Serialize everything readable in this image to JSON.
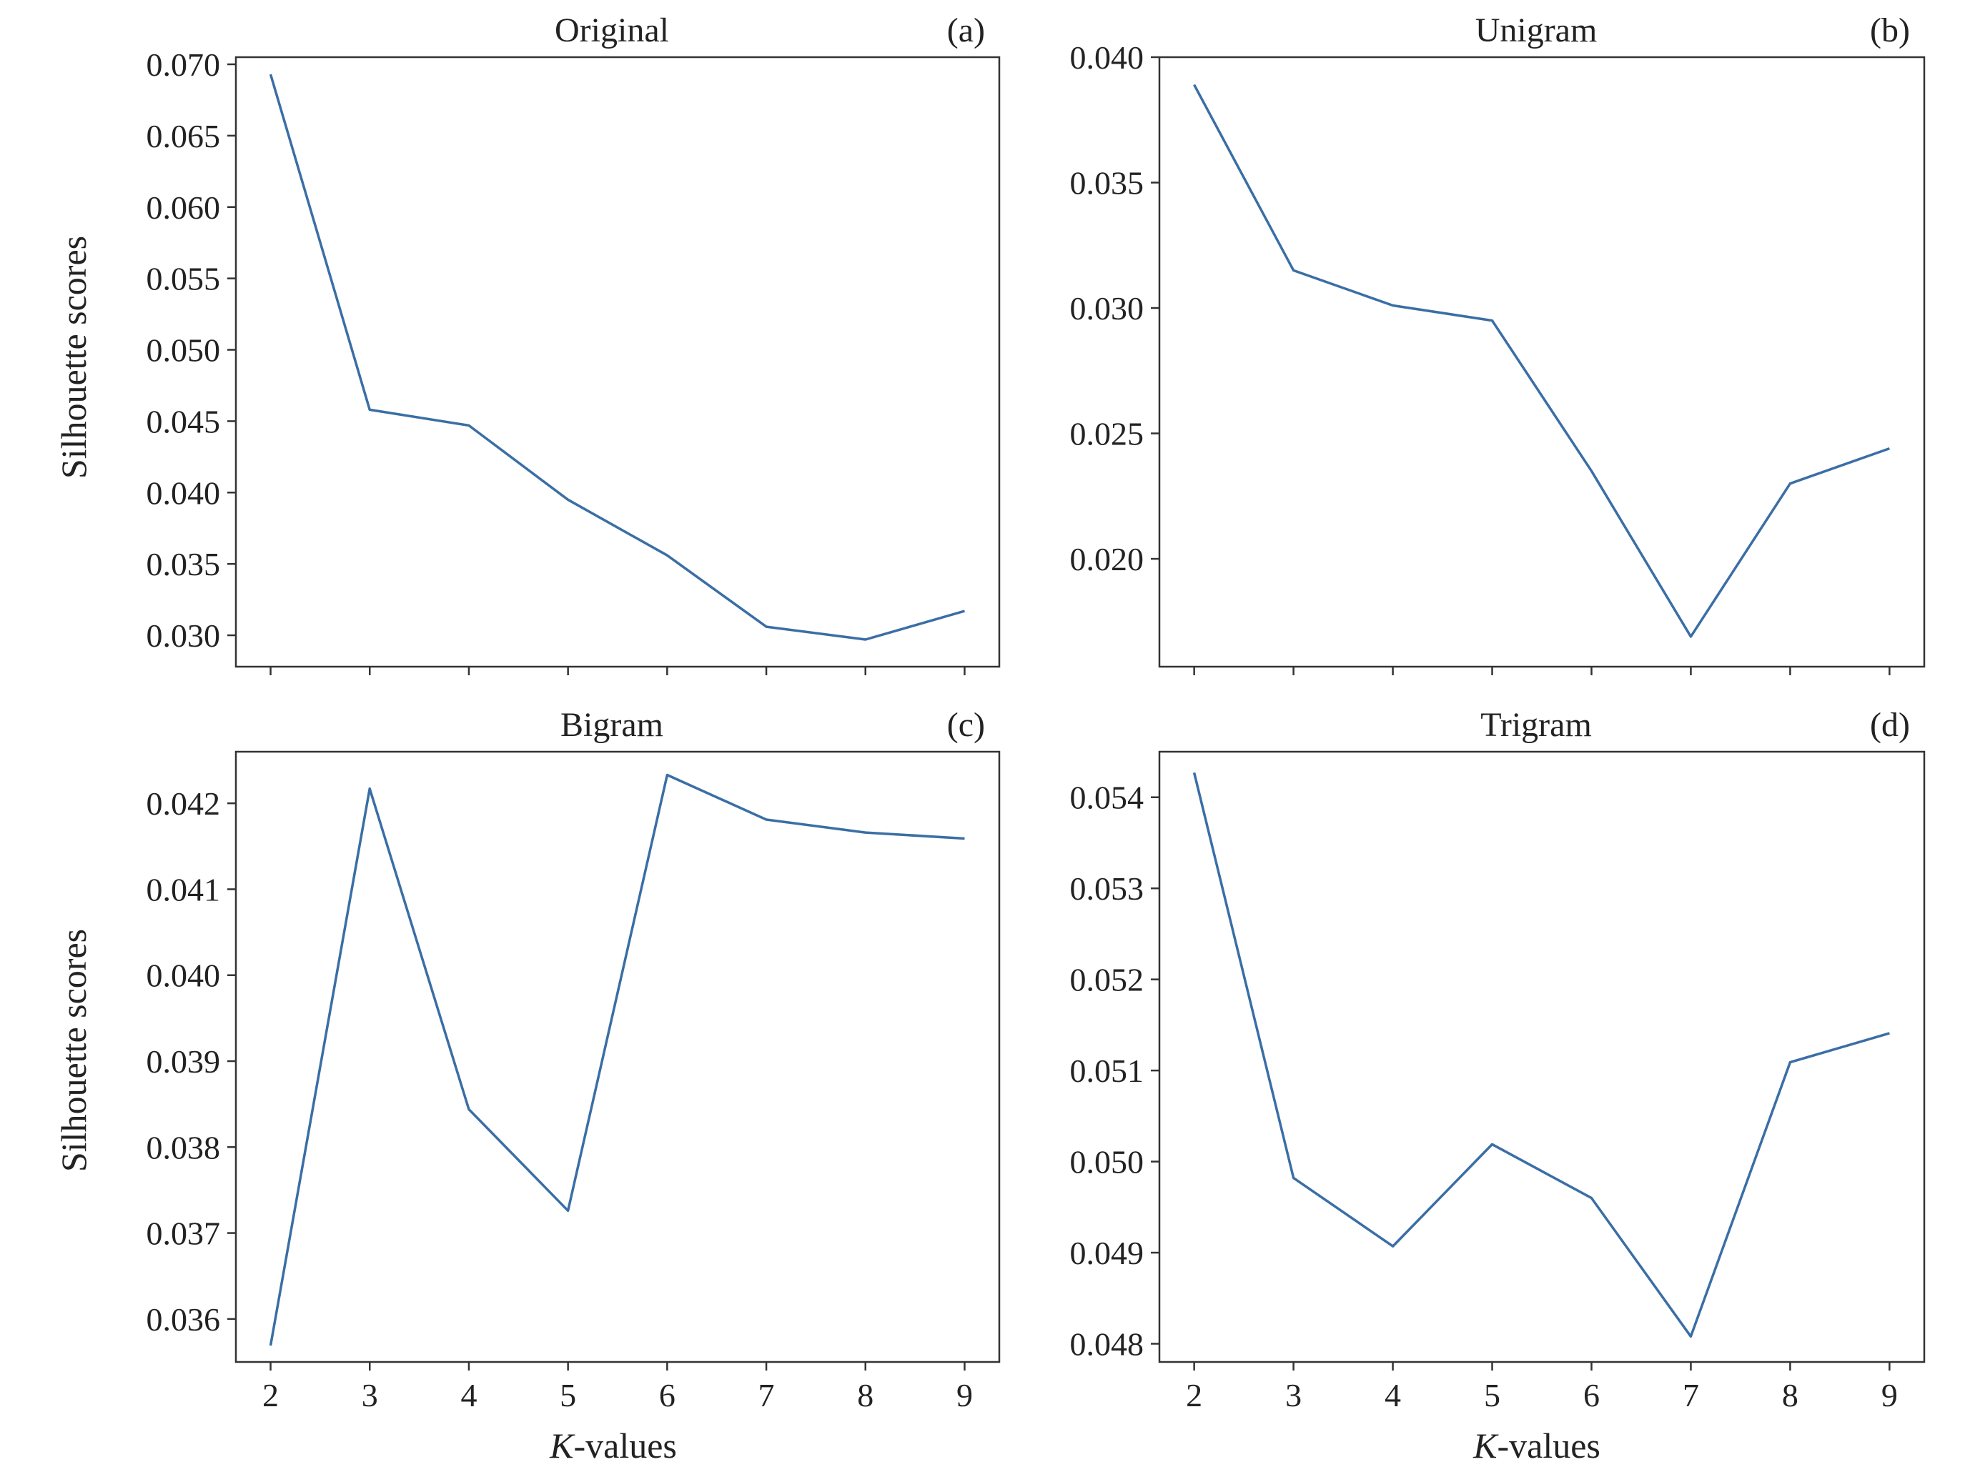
{
  "figure": {
    "ylabel": "Silhouette scores",
    "xlabel_italic": "K",
    "xlabel_rest": "-values"
  },
  "chart_data": [
    {
      "type": "line",
      "title": "Original",
      "panel": "(a)",
      "x": [
        2,
        3,
        4,
        5,
        6,
        7,
        8,
        9
      ],
      "series": [
        {
          "values": [
            0.0693,
            0.0458,
            0.0447,
            0.0395,
            0.0356,
            0.0306,
            0.0297,
            0.0317
          ]
        }
      ],
      "ylim": [
        0.0278,
        0.0705
      ],
      "yticks": [
        "0.030",
        "0.035",
        "0.040",
        "0.045",
        "0.050",
        "0.055",
        "0.060",
        "0.065",
        "0.070"
      ],
      "xticks": [],
      "xlabel": "",
      "ylabel": "Silhouette scores",
      "color": "#3a6ea5"
    },
    {
      "type": "line",
      "title": "Unigram",
      "panel": "(b)",
      "x": [
        2,
        3,
        4,
        5,
        6,
        7,
        8,
        9
      ],
      "series": [
        {
          "values": [
            0.0389,
            0.0315,
            0.0301,
            0.0295,
            0.0235,
            0.0169,
            0.023,
            0.0244
          ]
        }
      ],
      "ylim": [
        0.0157,
        0.04
      ],
      "yticks": [
        "0.020",
        "0.025",
        "0.030",
        "0.035",
        "0.040"
      ],
      "xticks": [],
      "xlabel": "",
      "ylabel": "",
      "color": "#3a6ea5"
    },
    {
      "type": "line",
      "title": "Bigram",
      "panel": "(c)",
      "x": [
        2,
        3,
        4,
        5,
        6,
        7,
        8,
        9
      ],
      "series": [
        {
          "values": [
            0.03569,
            0.04217,
            0.03844,
            0.03726,
            0.04233,
            0.04181,
            0.04166,
            0.04159
          ]
        }
      ],
      "ylim": [
        0.0355,
        0.0426
      ],
      "yticks": [
        "0.036",
        "0.037",
        "0.038",
        "0.039",
        "0.040",
        "0.041",
        "0.042"
      ],
      "xticks": [
        "2",
        "3",
        "4",
        "5",
        "6",
        "7",
        "8",
        "9"
      ],
      "xlabel": "K-values",
      "ylabel": "Silhouette scores",
      "color": "#3a6ea5"
    },
    {
      "type": "line",
      "title": "Trigram",
      "panel": "(d)",
      "x": [
        2,
        3,
        4,
        5,
        6,
        7,
        8,
        9
      ],
      "series": [
        {
          "values": [
            0.05427,
            0.04982,
            0.04907,
            0.05019,
            0.0496,
            0.04808,
            0.05109,
            0.05141
          ]
        }
      ],
      "ylim": [
        0.0478,
        0.0545
      ],
      "yticks": [
        "0.048",
        "0.049",
        "0.050",
        "0.051",
        "0.052",
        "0.053",
        "0.054"
      ],
      "xticks": [
        "2",
        "3",
        "4",
        "5",
        "6",
        "7",
        "8",
        "9"
      ],
      "xlabel": "K-values",
      "ylabel": "",
      "color": "#3a6ea5"
    }
  ]
}
